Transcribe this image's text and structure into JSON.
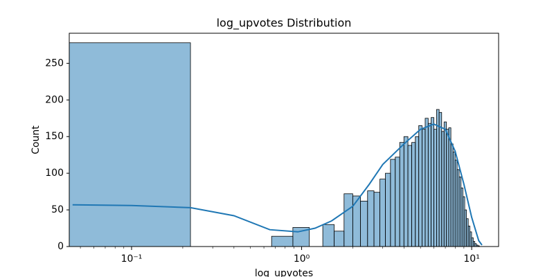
{
  "chart_data": {
    "type": "histogram",
    "title": "log_upvotes Distribution",
    "x_label": "log_upvotes",
    "y_label": "Count",
    "x_scale": "log",
    "color": "#1f77b4",
    "bins": [
      0,
      0.222,
      0.444,
      0.666,
      0.888,
      1.11,
      1.332,
      1.554,
      1.776,
      1.998,
      2.22,
      2.442,
      2.664,
      2.886,
      3.108,
      3.33,
      3.552,
      3.774,
      3.996,
      4.218,
      4.44,
      4.662,
      4.884,
      5.106,
      5.328,
      5.55,
      5.772,
      5.994,
      6.216,
      6.438,
      6.66,
      6.882,
      7.104,
      7.326,
      7.548,
      7.77,
      7.992,
      8.214,
      8.436,
      8.658,
      8.88,
      9.102,
      9.324,
      9.546,
      9.768,
      9.99,
      10.212,
      10.434,
      10.656,
      10.878,
      11.1
    ],
    "values": [
      278,
      0,
      0,
      14,
      26,
      0,
      30,
      21,
      72,
      69,
      62,
      76,
      74,
      92,
      100,
      119,
      122,
      142,
      150,
      138,
      142,
      150,
      165,
      160,
      175,
      168,
      176,
      160,
      187,
      183,
      157,
      170,
      160,
      162,
      140,
      129,
      118,
      105,
      95,
      80,
      68,
      50,
      38,
      28,
      20,
      12,
      7,
      4,
      2,
      1
    ],
    "kde": {
      "x": [
        0.045,
        0.1,
        0.222,
        0.4,
        0.65,
        0.95,
        1.2,
        1.5,
        2,
        2.5,
        3,
        4,
        5,
        6,
        7,
        8,
        9,
        10,
        11,
        11.5
      ],
      "y": [
        57,
        56,
        53,
        42,
        23,
        20,
        25,
        35,
        55,
        85,
        112,
        140,
        160,
        167,
        160,
        130,
        85,
        40,
        8,
        2
      ]
    },
    "xlim": [
      0.043,
      14.4
    ],
    "ylim": [
      0,
      291
    ],
    "xticks": [
      {
        "value": 0.1,
        "label": "10⁻¹"
      },
      {
        "value": 1,
        "label": "10⁰"
      },
      {
        "value": 10,
        "label": "10¹"
      }
    ],
    "yticks": [
      0,
      50,
      100,
      150,
      200,
      250
    ]
  }
}
